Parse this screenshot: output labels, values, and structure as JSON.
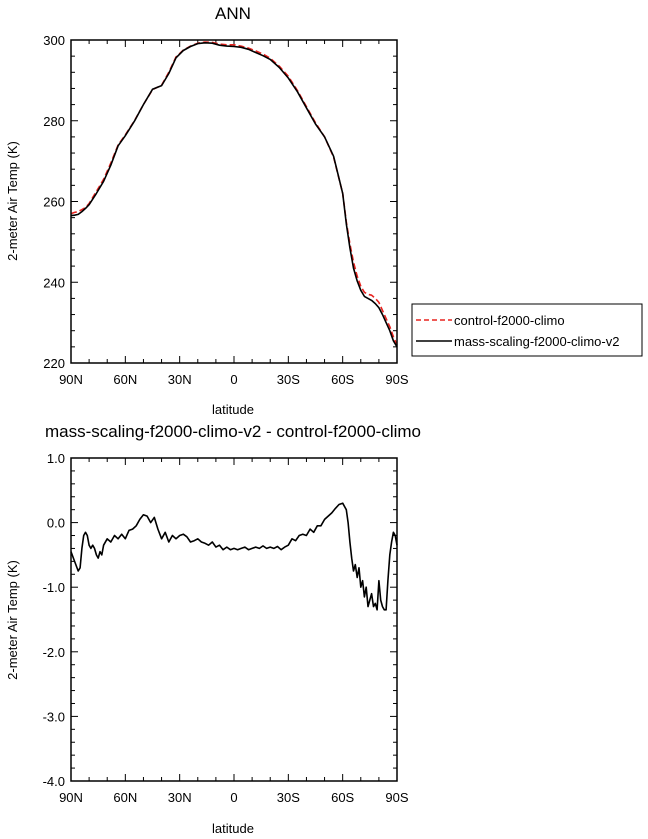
{
  "chart_data": [
    {
      "type": "line",
      "title": "ANN",
      "xlabel": "latitude",
      "ylabel": "2-meter Air Temp (K)",
      "xlim": [
        90,
        -90
      ],
      "ylim": [
        220,
        300
      ],
      "x_tick_values": [
        90,
        60,
        30,
        0,
        -30,
        -60,
        -90
      ],
      "x_tick_labels": [
        "90N",
        "60N",
        "30N",
        "0",
        "30S",
        "60S",
        "90S"
      ],
      "y_tick_values": [
        220,
        240,
        260,
        280,
        300
      ],
      "y_tick_labels": [
        "220",
        "240",
        "260",
        "280",
        "300"
      ],
      "grid": false,
      "legend_position": "outside-right",
      "series": [
        {
          "name": "control-f2000-climo",
          "color": "#e8231f",
          "dash": "dashed",
          "x": [
            90,
            88,
            86,
            84,
            82,
            80,
            76,
            72,
            68,
            64,
            60,
            55,
            50,
            45,
            40,
            36,
            32,
            28,
            24,
            20,
            16,
            12,
            8,
            4,
            0,
            -4,
            -8,
            -12,
            -16,
            -20,
            -25,
            -30,
            -35,
            -40,
            -45,
            -50,
            -55,
            -60,
            -62,
            -64,
            -66,
            -68,
            -70,
            -72,
            -74,
            -76,
            -78,
            -80,
            -82,
            -84,
            -86,
            -88,
            -90
          ],
          "y": [
            257.0,
            257.3,
            257.5,
            258.0,
            258.5,
            259.5,
            262.5,
            265.5,
            269.5,
            274.0,
            276.5,
            280.0,
            284.0,
            287.7,
            288.8,
            292.0,
            295.8,
            297.5,
            298.5,
            299.2,
            299.5,
            299.4,
            299.0,
            298.8,
            298.8,
            298.5,
            298.0,
            297.3,
            296.5,
            295.5,
            293.5,
            291.0,
            287.5,
            283.5,
            279.5,
            276.0,
            271.0,
            262.0,
            255.0,
            249.5,
            245.0,
            241.5,
            239.0,
            237.5,
            237.0,
            236.8,
            236.0,
            235.0,
            233.0,
            231.0,
            229.0,
            226.5,
            224.5
          ]
        },
        {
          "name": "mass-scaling-f2000-climo-v2",
          "color": "#000000",
          "dash": "solid",
          "x": [
            90,
            88,
            86,
            84,
            82,
            80,
            76,
            72,
            68,
            64,
            60,
            55,
            50,
            45,
            40,
            36,
            32,
            28,
            24,
            20,
            16,
            12,
            8,
            4,
            0,
            -4,
            -8,
            -12,
            -16,
            -20,
            -25,
            -30,
            -35,
            -40,
            -45,
            -50,
            -55,
            -60,
            -62,
            -64,
            -66,
            -68,
            -70,
            -72,
            -74,
            -76,
            -78,
            -80,
            -82,
            -84,
            -86,
            -88,
            -90
          ],
          "y": [
            256.5,
            256.6,
            256.8,
            257.5,
            258.3,
            259.2,
            262.0,
            265.0,
            269.0,
            273.8,
            276.3,
            279.9,
            284.0,
            287.8,
            288.7,
            291.7,
            295.6,
            297.4,
            298.4,
            299.1,
            299.3,
            299.2,
            298.7,
            298.5,
            298.4,
            298.2,
            297.7,
            296.9,
            296.1,
            295.2,
            293.2,
            290.6,
            287.2,
            283.2,
            279.2,
            276.0,
            271.2,
            262.0,
            254.5,
            248.5,
            243.5,
            240.3,
            238.0,
            236.5,
            236.0,
            235.5,
            234.7,
            233.7,
            232.0,
            230.0,
            228.0,
            225.5,
            224.0
          ]
        }
      ]
    },
    {
      "type": "line",
      "title": "mass-scaling-f2000-climo-v2 - control-f2000-climo",
      "xlabel": "latitude",
      "ylabel": "2-meter Air Temp (K)",
      "xlim": [
        90,
        -90
      ],
      "ylim": [
        -4.0,
        1.0
      ],
      "x_tick_values": [
        90,
        60,
        30,
        0,
        -30,
        -60,
        -90
      ],
      "x_tick_labels": [
        "90N",
        "60N",
        "30N",
        "0",
        "30S",
        "60S",
        "90S"
      ],
      "y_tick_values": [
        1.0,
        0.0,
        -1.0,
        -2.0,
        -3.0,
        -4.0
      ],
      "y_tick_labels": [
        "1.0",
        "0.0",
        "-1.0",
        "-2.0",
        "-3.0",
        "-4.0"
      ],
      "grid": false,
      "series": [
        {
          "color": "#000000",
          "dash": "solid",
          "x": [
            90,
            88,
            86,
            85,
            84,
            83,
            82,
            81,
            80,
            79,
            78,
            77,
            76,
            75,
            74,
            73,
            72,
            70,
            68,
            66,
            64,
            62,
            60,
            58,
            56,
            54,
            52,
            50,
            48,
            46,
            44,
            42,
            40,
            38,
            36,
            34,
            32,
            30,
            28,
            26,
            24,
            22,
            20,
            18,
            16,
            14,
            12,
            10,
            8,
            6,
            4,
            2,
            0,
            -2,
            -4,
            -6,
            -8,
            -10,
            -12,
            -14,
            -16,
            -18,
            -20,
            -22,
            -24,
            -26,
            -28,
            -30,
            -32,
            -34,
            -36,
            -38,
            -40,
            -42,
            -44,
            -46,
            -48,
            -50,
            -52,
            -54,
            -56,
            -58,
            -60,
            -62,
            -63,
            -64,
            -65,
            -66,
            -67,
            -68,
            -69,
            -70,
            -71,
            -72,
            -73,
            -74,
            -75,
            -76,
            -77,
            -78,
            -79,
            -80,
            -81,
            -82,
            -83,
            -84,
            -85,
            -86,
            -87,
            -88,
            -89,
            -90
          ],
          "y": [
            -0.45,
            -0.6,
            -0.75,
            -0.7,
            -0.4,
            -0.2,
            -0.15,
            -0.2,
            -0.35,
            -0.4,
            -0.35,
            -0.4,
            -0.5,
            -0.55,
            -0.45,
            -0.5,
            -0.35,
            -0.25,
            -0.3,
            -0.2,
            -0.25,
            -0.18,
            -0.25,
            -0.12,
            -0.1,
            -0.05,
            0.05,
            0.12,
            0.1,
            0.0,
            0.08,
            -0.1,
            -0.25,
            -0.15,
            -0.3,
            -0.2,
            -0.25,
            -0.2,
            -0.18,
            -0.22,
            -0.3,
            -0.28,
            -0.25,
            -0.3,
            -0.32,
            -0.35,
            -0.3,
            -0.38,
            -0.35,
            -0.42,
            -0.38,
            -0.42,
            -0.4,
            -0.42,
            -0.4,
            -0.38,
            -0.42,
            -0.4,
            -0.38,
            -0.4,
            -0.36,
            -0.4,
            -0.38,
            -0.4,
            -0.37,
            -0.42,
            -0.38,
            -0.35,
            -0.25,
            -0.28,
            -0.2,
            -0.18,
            -0.2,
            -0.1,
            -0.15,
            -0.05,
            -0.05,
            0.05,
            0.1,
            0.15,
            0.22,
            0.28,
            0.3,
            0.2,
            0.0,
            -0.3,
            -0.55,
            -0.75,
            -0.65,
            -0.85,
            -0.7,
            -1.0,
            -0.9,
            -1.15,
            -1.0,
            -1.3,
            -1.2,
            -1.1,
            -1.3,
            -1.25,
            -1.35,
            -0.9,
            -1.2,
            -1.3,
            -1.35,
            -1.35,
            -0.9,
            -0.5,
            -0.3,
            -0.15,
            -0.2,
            -0.35
          ]
        }
      ]
    }
  ]
}
